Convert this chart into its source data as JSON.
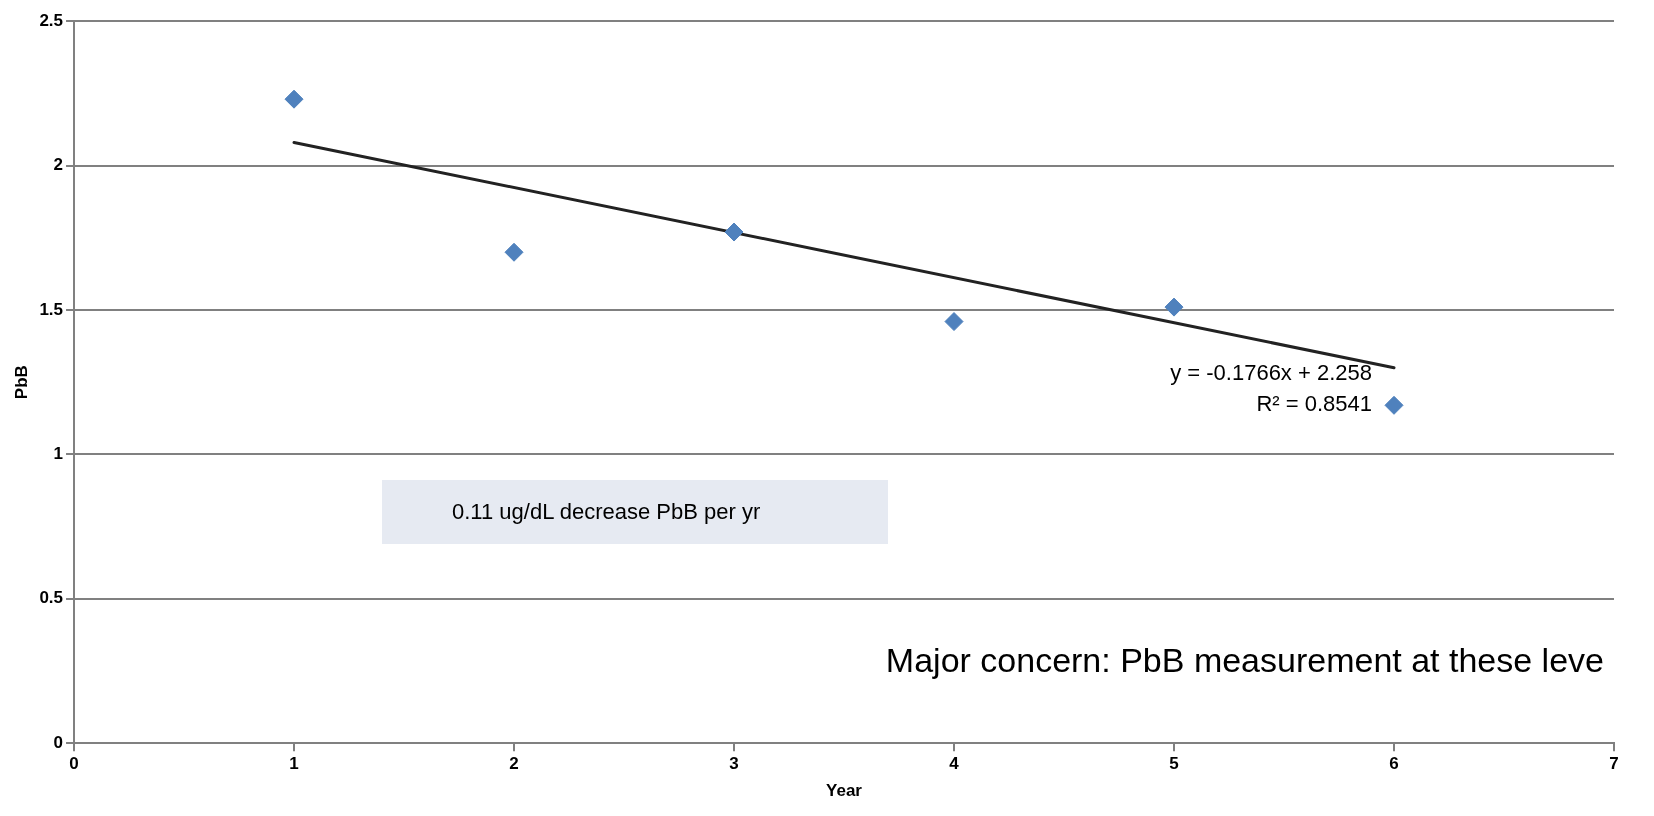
{
  "chart_data": {
    "type": "scatter",
    "xlabel": "Year",
    "ylabel": "PbB",
    "x": [
      1,
      2,
      3,
      4,
      5,
      6
    ],
    "series": [
      {
        "type": "scatter",
        "color": "#4f81bd",
        "marker": "diamond",
        "values": [
          2.23,
          1.7,
          1.77,
          1.46,
          1.51,
          1.17
        ]
      },
      {
        "type": "line",
        "color": "#222222",
        "marker": "none",
        "line_style": "solid",
        "x": [
          1,
          6
        ],
        "values": [
          2.08,
          1.3
        ]
      }
    ],
    "xlim": [
      0,
      7
    ],
    "xticks": [
      0,
      1,
      2,
      3,
      4,
      5,
      6,
      7
    ],
    "ylim": [
      0,
      2.5
    ],
    "yticks": [
      0,
      0.5,
      1,
      1.5,
      2,
      2.5
    ],
    "grid": "y",
    "legend": false,
    "annotations": [
      "y = -0.1766x + 2.258",
      "R² = 0.8541",
      "0.11 ug/dL decrease PbB per yr",
      "Major concern: PbB measurement at these leve"
    ]
  }
}
